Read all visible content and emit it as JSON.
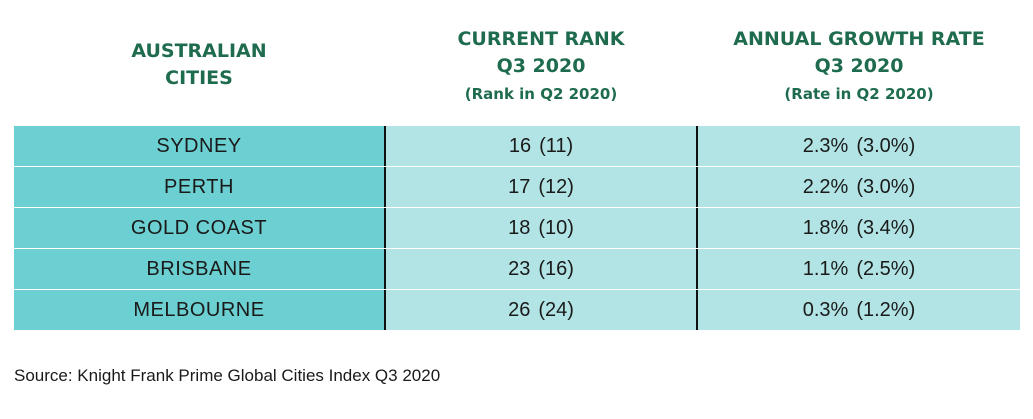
{
  "headers": {
    "city": {
      "line1": "AUSTRALIAN",
      "line2": "CITIES"
    },
    "rank": {
      "line1": "CURRENT RANK",
      "line2": "Q3 2020",
      "sub": "(Rank in Q2 2020)"
    },
    "growth": {
      "line1": "ANNUAL GROWTH RATE",
      "line2": "Q3 2020",
      "sub": "(Rate in Q2 2020)"
    }
  },
  "rows": [
    {
      "city": "SYDNEY",
      "rank": "16",
      "rank_prev": "(11)",
      "growth": "2.3%",
      "growth_prev": "(3.0%)"
    },
    {
      "city": "PERTH",
      "rank": "17",
      "rank_prev": "(12)",
      "growth": "2.2%",
      "growth_prev": "(3.0%)"
    },
    {
      "city": "GOLD COAST",
      "rank": "18",
      "rank_prev": "(10)",
      "growth": "1.8%",
      "growth_prev": "(3.4%)"
    },
    {
      "city": "BRISBANE",
      "rank": "23",
      "rank_prev": "(16)",
      "growth": "1.1%",
      "growth_prev": "(2.5%)"
    },
    {
      "city": "MELBOURNE",
      "rank": "26",
      "rank_prev": "(24)",
      "growth": "0.3%",
      "growth_prev": "(1.2%)"
    }
  ],
  "source": "Source: Knight Frank Prime Global Cities Index Q3 2020",
  "colors": {
    "header_text": "#1f6b4e",
    "city_column_bg": "#6ccfd1",
    "value_column_bg": "#b2e4e5"
  }
}
